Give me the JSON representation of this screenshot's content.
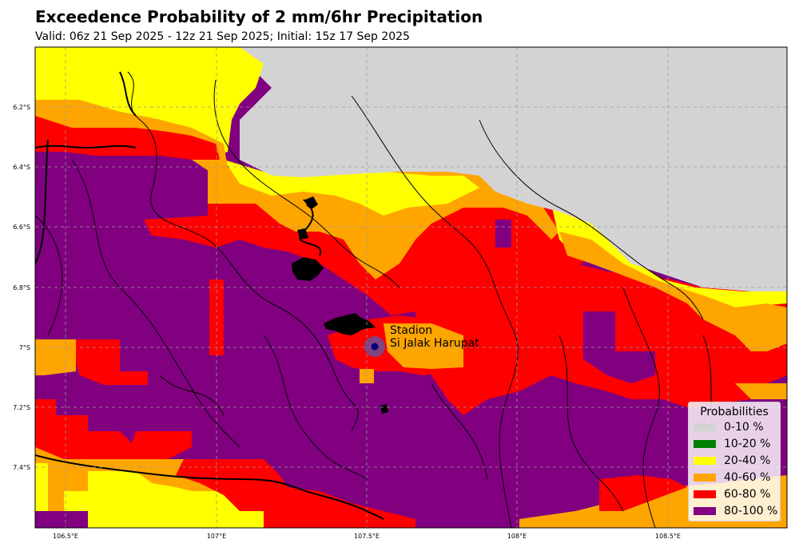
{
  "title": "Exceedence Probability of 2 mm/6hr Precipitation",
  "subtitle": "Valid: 06z 21 Sep 2025 - 12z 21 Sep 2025; Initial: 15z 17 Sep 2025",
  "map": {
    "lon_range": [
      106.4,
      108.9
    ],
    "lat_range": [
      -7.6,
      -6.0
    ],
    "lon_ticks": [
      "106.5°E",
      "107°E",
      "107.5°E",
      "108°E",
      "108.5°E"
    ],
    "lat_ticks": [
      "6.2°S",
      "6.4°S",
      "6.6°S",
      "6.8°S",
      "7°S",
      "7.2°S",
      "7.4°S"
    ],
    "gridlines": true,
    "station": {
      "name_line1": "Stadion",
      "name_line2": "Si Jalak Harupat",
      "lon": 107.53,
      "lat": -7.0
    },
    "colors": {
      "0-10": "#d3d3d3",
      "10-20": "#008000",
      "20-40": "#ffff00",
      "40-60": "#ffa500",
      "60-80": "#ff0000",
      "80-100": "#800080"
    }
  },
  "legend": {
    "title": "Probabilities",
    "items": [
      {
        "label": "0-10 %",
        "color": "#d3d3d3"
      },
      {
        "label": "10-20 %",
        "color": "#008000"
      },
      {
        "label": "20-40 %",
        "color": "#ffff00"
      },
      {
        "label": "40-60 %",
        "color": "#ffa500"
      },
      {
        "label": "60-80 %",
        "color": "#ff0000"
      },
      {
        "label": "80-100 %",
        "color": "#800080"
      }
    ]
  }
}
